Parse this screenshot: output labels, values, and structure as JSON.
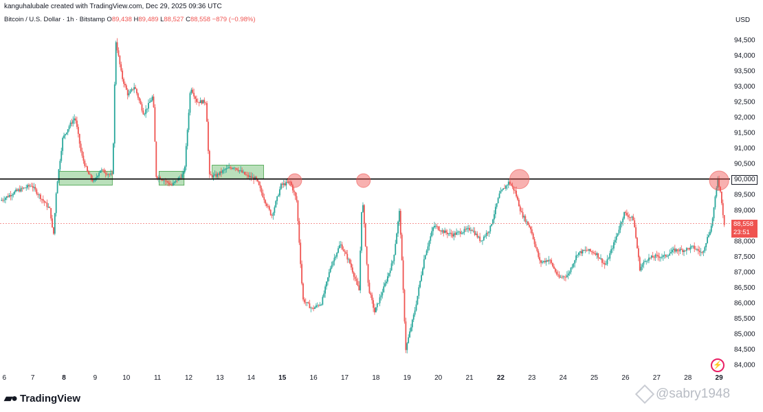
{
  "header": {
    "attribution": "kanguhalubale created with TradingView.com, Dec 29, 2025 09:36 UTC",
    "symbol": "Bitcoin / U.S. Dollar · 1h · Bitstamp",
    "open_label": "O",
    "open": "89,438",
    "high_label": "H",
    "high": "89,489",
    "low_label": "L",
    "low": "88,527",
    "close_label": "C",
    "close": "88,558",
    "change": "−879 (−0.98%)"
  },
  "currency": "USD",
  "level_tag": "90,000",
  "last_price_tag": {
    "price": "88,558",
    "countdown": "23:51"
  },
  "logo": "TradingView",
  "watermark": "@sabry1948",
  "colors": {
    "up": "#26a69a",
    "down": "#ef5350",
    "level": "#000000",
    "zone": "#4caf50",
    "marker": "#ef5350"
  },
  "chart_data": {
    "type": "candlestick",
    "ylim": [
      83800,
      94900
    ],
    "y_ticks": [
      "84,000",
      "84,500",
      "85,000",
      "85,500",
      "86,000",
      "86,500",
      "87,000",
      "87,500",
      "88,000",
      "88,500",
      "89,000",
      "89,500",
      "90,000",
      "90,500",
      "91,000",
      "91,500",
      "92,000",
      "92,500",
      "93,000",
      "93,500",
      "94,000",
      "94,500"
    ],
    "y_tick_values": [
      84000,
      84500,
      85000,
      85500,
      86000,
      86500,
      87000,
      87500,
      88000,
      88500,
      89000,
      89500,
      90000,
      90500,
      91000,
      91500,
      92000,
      92500,
      93000,
      93500,
      94000,
      94500
    ],
    "x_ticks": [
      {
        "label": "6",
        "day": 6,
        "bold": false
      },
      {
        "label": "7",
        "day": 7,
        "bold": false
      },
      {
        "label": "8",
        "day": 8,
        "bold": true
      },
      {
        "label": "9",
        "day": 9,
        "bold": false
      },
      {
        "label": "10",
        "day": 10,
        "bold": false
      },
      {
        "label": "11",
        "day": 11,
        "bold": false
      },
      {
        "label": "12",
        "day": 12,
        "bold": false
      },
      {
        "label": "13",
        "day": 13,
        "bold": false
      },
      {
        "label": "14",
        "day": 14,
        "bold": false
      },
      {
        "label": "15",
        "day": 15,
        "bold": true
      },
      {
        "label": "16",
        "day": 16,
        "bold": false
      },
      {
        "label": "17",
        "day": 17,
        "bold": false
      },
      {
        "label": "18",
        "day": 18,
        "bold": false
      },
      {
        "label": "19",
        "day": 19,
        "bold": false
      },
      {
        "label": "20",
        "day": 20,
        "bold": false
      },
      {
        "label": "21",
        "day": 21,
        "bold": false
      },
      {
        "label": "22",
        "day": 22,
        "bold": true
      },
      {
        "label": "23",
        "day": 23,
        "bold": false
      },
      {
        "label": "24",
        "day": 24,
        "bold": false
      },
      {
        "label": "25",
        "day": 25,
        "bold": false
      },
      {
        "label": "26",
        "day": 26,
        "bold": false
      },
      {
        "label": "27",
        "day": 27,
        "bold": false
      },
      {
        "label": "28",
        "day": 28,
        "bold": false
      },
      {
        "label": "29",
        "day": 29,
        "bold": true
      }
    ],
    "x_range_days": [
      5.95,
      29.35
    ],
    "price_path_days": [
      6.0,
      6.5,
      7.0,
      7.3,
      7.6,
      7.7,
      7.8,
      8.0,
      8.2,
      8.4,
      8.6,
      8.8,
      9.0,
      9.2,
      9.4,
      9.6,
      9.7,
      9.9,
      10.1,
      10.3,
      10.6,
      10.9,
      11.0,
      11.2,
      11.5,
      11.7,
      11.9,
      12.1,
      12.3,
      12.6,
      12.7,
      12.9,
      13.2,
      13.5,
      13.9,
      14.2,
      14.4,
      14.7,
      15.0,
      15.3,
      15.5,
      15.7,
      16.0,
      16.3,
      16.6,
      16.9,
      17.2,
      17.5,
      17.6,
      17.8,
      18.0,
      18.3,
      18.6,
      18.8,
      19.0,
      19.3,
      19.6,
      19.9,
      20.2,
      20.5,
      20.8,
      21.1,
      21.4,
      21.7,
      22.0,
      22.3,
      22.5,
      22.7,
      23.0,
      23.3,
      23.6,
      23.9,
      24.2,
      24.5,
      24.8,
      25.1,
      25.4,
      25.7,
      26.0,
      26.3,
      26.5,
      26.7,
      27.0,
      27.3,
      27.6,
      27.9,
      28.2,
      28.5,
      28.8,
      29.0,
      29.1,
      29.2
    ],
    "price_path": [
      89300,
      89600,
      89800,
      89400,
      89000,
      88100,
      89700,
      91300,
      91700,
      92000,
      90800,
      90200,
      89900,
      90300,
      90200,
      90100,
      94500,
      93300,
      92700,
      93000,
      92100,
      92700,
      90100,
      90000,
      89800,
      90000,
      90200,
      93000,
      92500,
      92500,
      90100,
      90100,
      90300,
      90400,
      90100,
      90000,
      89500,
      88800,
      89800,
      89900,
      89300,
      86100,
      85800,
      86000,
      87200,
      87900,
      87300,
      86400,
      89500,
      86500,
      85700,
      86500,
      87400,
      89000,
      84500,
      85800,
      87500,
      88500,
      88300,
      88200,
      88300,
      88400,
      88000,
      88400,
      89500,
      89900,
      89600,
      88900,
      88400,
      87300,
      87400,
      86800,
      86900,
      87600,
      87700,
      87600,
      87200,
      88000,
      88900,
      88700,
      87100,
      87400,
      87500,
      87500,
      87700,
      87700,
      87800,
      87600,
      88500,
      90000,
      89500,
      88558
    ],
    "level": 90000,
    "zones": [
      {
        "start_day": 7.85,
        "end_day": 9.55,
        "low": 89800,
        "high": 90250
      },
      {
        "start_day": 11.05,
        "end_day": 11.85,
        "low": 89800,
        "high": 90250
      },
      {
        "start_day": 12.75,
        "end_day": 14.4,
        "low": 90000,
        "high": 90450
      }
    ],
    "markers": [
      {
        "day": 15.4,
        "price": 89950,
        "size": "small"
      },
      {
        "day": 17.6,
        "price": 89950,
        "size": "small"
      },
      {
        "day": 22.6,
        "price": 90000,
        "size": "large"
      },
      {
        "day": 29.0,
        "price": 89950,
        "size": "large"
      }
    ]
  }
}
